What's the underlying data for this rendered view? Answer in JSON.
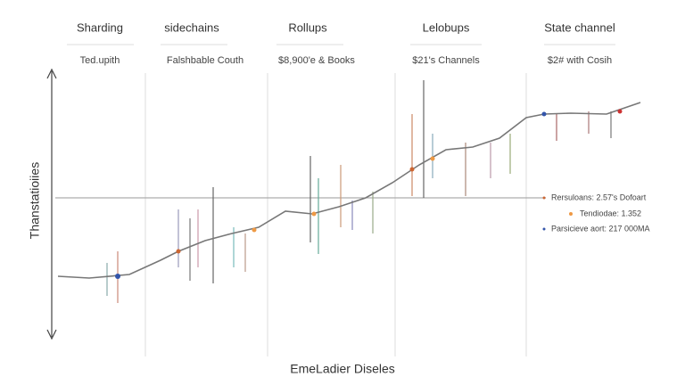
{
  "columns": [
    {
      "title": "Sharding",
      "subtitle": "Ted.upith"
    },
    {
      "title": "sidechains",
      "subtitle": "Falshbable Couth"
    },
    {
      "title": "Rollups",
      "subtitle": "$8,900'e & Books"
    },
    {
      "title": "Lelobups",
      "subtitle": "$21's Channels"
    },
    {
      "title": "State channel",
      "subtitle": "$2# with Cosih"
    }
  ],
  "axis": {
    "y_label": "Thanstatioiies",
    "x_label": "EmeLadier Diseles"
  },
  "legend": [
    "Rersuloans: 2.57's Dofoart",
    "Tendiodae: 1.352",
    "Parsicieve aort: 217 000MA"
  ]
}
